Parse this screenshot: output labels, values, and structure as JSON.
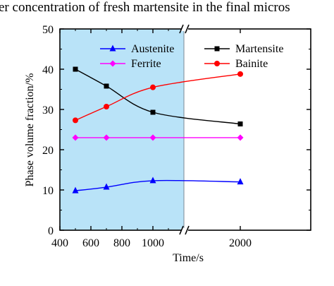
{
  "caption": "er concentration of fresh martensite in the final micros",
  "chart_data": {
    "type": "line",
    "xlabel": "Time/s",
    "ylabel": "Phase volume fraction/%",
    "xlim": [
      400,
      2500
    ],
    "x_break": [
      1200,
      1600
    ],
    "xticks": [
      "400",
      "600",
      "800",
      "1000",
      "2000"
    ],
    "ylim": [
      0,
      50
    ],
    "yticks": [
      "0",
      "10",
      "20",
      "30",
      "40",
      "50"
    ],
    "highlight_region": {
      "x_start": 400,
      "x_end": 1200,
      "color": "#b9e3f8"
    },
    "grid": false,
    "legend_position": "top",
    "series": [
      {
        "name": "Austenite",
        "color": "#0000ff",
        "marker": "triangle",
        "x": [
          500,
          700,
          1000,
          2000
        ],
        "values": [
          9.8,
          10.7,
          12.3,
          12.0
        ]
      },
      {
        "name": "Martensite",
        "color": "#000000",
        "marker": "square",
        "x": [
          500,
          700,
          1000,
          2000
        ],
        "values": [
          40.0,
          35.8,
          29.3,
          26.4
        ]
      },
      {
        "name": "Ferrite",
        "color": "#ff00ff",
        "marker": "diamond",
        "x": [
          500,
          700,
          1000,
          2000
        ],
        "values": [
          23.0,
          23.0,
          23.0,
          23.0
        ]
      },
      {
        "name": "Bainite",
        "color": "#ff0000",
        "marker": "circle",
        "x": [
          500,
          700,
          1000,
          2000
        ],
        "values": [
          27.3,
          30.7,
          35.5,
          38.8
        ]
      }
    ]
  }
}
